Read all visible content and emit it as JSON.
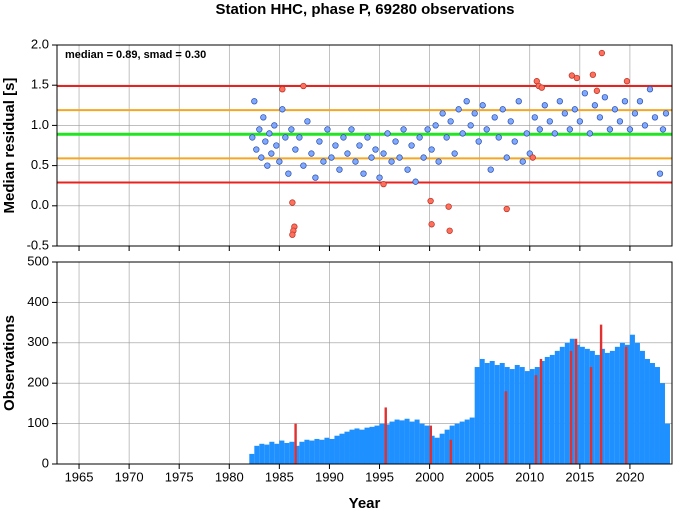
{
  "chart_data": [
    {
      "type": "scatter",
      "title": "Station HHC, phase P, 69280 observations",
      "ylabel": "Median residual [s]",
      "annotation": "median = 0.89, smad = 0.30",
      "xlim": [
        1962.8,
        2024.2
      ],
      "xticks": [
        1965,
        1970,
        1975,
        1980,
        1985,
        1990,
        1995,
        2000,
        2005,
        2010,
        2015,
        2020
      ],
      "show_xtick_labels": false,
      "ylim": [
        -0.5,
        2.0
      ],
      "yticks": [
        -0.5,
        {
          "value": 0,
          "label": "0.0"
        },
        0.5,
        {
          "value": 1,
          "label": "1.0"
        },
        1.5,
        {
          "value": 2,
          "label": "2.0"
        }
      ],
      "grid": true,
      "hlines": [
        {
          "value": 1.49,
          "color": "#e8231f"
        },
        {
          "value": 1.19,
          "color": "#f5a623"
        },
        {
          "value": 0.89,
          "color": "#22e522"
        },
        {
          "value": 0.59,
          "color": "#f5a623"
        },
        {
          "value": 0.29,
          "color": "#e8231f"
        }
      ],
      "series": [
        {
          "color": "#7fa8ff",
          "x": [
            1982.3,
            1982.5,
            1982.7,
            1983.0,
            1983.2,
            1983.4,
            1983.6,
            1983.8,
            1984.0,
            1984.2,
            1984.5,
            1984.7,
            1985.0,
            1985.3,
            1985.6,
            1985.9,
            1986.2,
            1986.6,
            1987.0,
            1987.4,
            1987.8,
            1988.2,
            1988.6,
            1989.0,
            1989.4,
            1989.8,
            1990.2,
            1990.6,
            1991.0,
            1991.4,
            1991.8,
            1992.2,
            1992.6,
            1993.0,
            1993.4,
            1993.8,
            1994.2,
            1994.6,
            1995.0,
            1995.4,
            1995.8,
            1996.2,
            1996.6,
            1997.0,
            1997.4,
            1997.8,
            1998.2,
            1998.6,
            1999.0,
            1999.4,
            1999.8,
            2000.2,
            2000.6,
            2000.9,
            2001.3,
            2001.7,
            2002.1,
            2002.5,
            2002.9,
            2003.3,
            2003.7,
            2004.1,
            2004.5,
            2004.9,
            2005.3,
            2005.7,
            2006.1,
            2006.5,
            2006.9,
            2007.3,
            2007.7,
            2008.1,
            2008.5,
            2008.9,
            2009.3,
            2009.7,
            2010.0,
            2010.5,
            2011.0,
            2011.5,
            2012.0,
            2012.5,
            2013.0,
            2013.5,
            2014.0,
            2014.5,
            2015.0,
            2015.5,
            2016.0,
            2016.5,
            2017.0,
            2017.5,
            2018.0,
            2018.5,
            2019.0,
            2019.5,
            2020.0,
            2020.5,
            2021.0,
            2021.5,
            2022.0,
            2022.5,
            2023.0,
            2023.3,
            2023.6
          ],
          "values": [
            0.85,
            1.3,
            0.7,
            0.95,
            0.6,
            1.1,
            0.8,
            0.5,
            0.9,
            0.65,
            1.0,
            0.75,
            0.55,
            1.2,
            0.85,
            0.4,
            0.95,
            0.7,
            0.85,
            0.5,
            1.05,
            0.65,
            0.35,
            0.8,
            0.55,
            0.95,
            0.6,
            0.75,
            0.45,
            0.85,
            0.65,
            0.95,
            0.55,
            0.75,
            0.4,
            0.85,
            0.6,
            0.7,
            0.35,
            0.65,
            0.9,
            0.55,
            0.8,
            0.6,
            0.95,
            0.45,
            0.75,
            0.3,
            0.85,
            0.6,
            0.95,
            0.7,
            1.0,
            0.55,
            1.15,
            0.85,
            1.05,
            0.65,
            1.2,
            0.9,
            1.3,
            1.0,
            1.15,
            0.8,
            1.25,
            0.95,
            0.45,
            1.1,
            0.85,
            1.2,
            0.6,
            1.05,
            0.8,
            1.3,
            0.55,
            0.9,
            0.65,
            1.1,
            0.95,
            1.25,
            1.05,
            0.9,
            1.3,
            1.15,
            0.95,
            1.2,
            1.05,
            1.4,
            0.9,
            1.25,
            1.1,
            1.35,
            0.95,
            1.2,
            1.05,
            1.3,
            0.95,
            1.15,
            1.3,
            1.0,
            1.45,
            1.1,
            0.4,
            0.95,
            1.15
          ]
        },
        {
          "color": "#ff6f5e",
          "x": [
            1985.3,
            1986.3,
            1986.5,
            1986.4,
            1986.3,
            1987.4,
            1995.4,
            2000.1,
            2000.2,
            2001.9,
            2002.0,
            2007.7,
            2010.3,
            2010.7,
            2010.9,
            2011.2,
            2014.2,
            2014.7,
            2016.3,
            2016.7,
            2017.2,
            2019.7
          ],
          "values": [
            1.45,
            0.04,
            -0.26,
            -0.31,
            -0.36,
            1.49,
            0.27,
            0.06,
            -0.23,
            -0.01,
            -0.31,
            -0.04,
            0.6,
            1.55,
            1.49,
            1.47,
            1.62,
            1.59,
            1.63,
            1.43,
            1.9,
            1.55
          ]
        }
      ]
    },
    {
      "type": "bar",
      "ylabel": "Observations",
      "xlabel": "Year",
      "xlim": [
        1962.8,
        2024.2
      ],
      "xticks": [
        1965,
        1970,
        1975,
        1980,
        1985,
        1990,
        1995,
        2000,
        2005,
        2010,
        2015,
        2020
      ],
      "show_xtick_labels": true,
      "ylim": [
        0,
        500
      ],
      "yticks": [
        0,
        100,
        200,
        300,
        400,
        500
      ],
      "grid": true,
      "series": [
        {
          "color": "#1e90ff",
          "x": [
            1982.0,
            1982.5,
            1983.0,
            1983.5,
            1984.0,
            1984.5,
            1985.0,
            1985.5,
            1986.0,
            1986.5,
            1987.0,
            1987.5,
            1988.0,
            1988.5,
            1989.0,
            1989.5,
            1990.0,
            1990.5,
            1991.0,
            1991.5,
            1992.0,
            1992.5,
            1993.0,
            1993.5,
            1994.0,
            1994.5,
            1995.0,
            1995.5,
            1996.0,
            1996.5,
            1997.0,
            1997.5,
            1998.0,
            1998.5,
            1999.0,
            1999.5,
            2000.0,
            2000.5,
            2001.0,
            2001.5,
            2002.0,
            2002.5,
            2003.0,
            2003.5,
            2004.0,
            2004.5,
            2005.0,
            2005.5,
            2006.0,
            2006.5,
            2007.0,
            2007.5,
            2008.0,
            2008.5,
            2009.0,
            2009.5,
            2010.0,
            2010.5,
            2011.0,
            2011.5,
            2012.0,
            2012.5,
            2013.0,
            2013.5,
            2014.0,
            2014.5,
            2015.0,
            2015.5,
            2016.0,
            2016.5,
            2017.0,
            2017.5,
            2018.0,
            2018.5,
            2019.0,
            2019.5,
            2020.0,
            2020.5,
            2021.0,
            2021.5,
            2022.0,
            2022.5,
            2023.0,
            2023.5
          ],
          "values": [
            25,
            45,
            50,
            48,
            55,
            50,
            58,
            52,
            55,
            45,
            55,
            60,
            58,
            62,
            60,
            65,
            62,
            70,
            75,
            80,
            85,
            88,
            85,
            90,
            92,
            95,
            100,
            98,
            105,
            110,
            108,
            112,
            105,
            110,
            100,
            95,
            70,
            65,
            75,
            85,
            95,
            100,
            105,
            110,
            115,
            240,
            260,
            250,
            255,
            245,
            250,
            240,
            235,
            245,
            240,
            230,
            235,
            240,
            255,
            265,
            270,
            280,
            290,
            300,
            310,
            295,
            290,
            285,
            280,
            270,
            285,
            275,
            280,
            290,
            300,
            295,
            320,
            300,
            280,
            260,
            250,
            240,
            200,
            100
          ]
        },
        {
          "color": "#e03030",
          "x": [
            1986.5,
            1995.5,
            2000.0,
            2002.0,
            2007.5,
            2010.5,
            2011.0,
            2014.0,
            2014.5,
            2016.0,
            2017.0,
            2019.5
          ],
          "values": [
            100,
            140,
            95,
            60,
            180,
            220,
            260,
            280,
            310,
            240,
            345,
            290
          ]
        }
      ]
    }
  ]
}
